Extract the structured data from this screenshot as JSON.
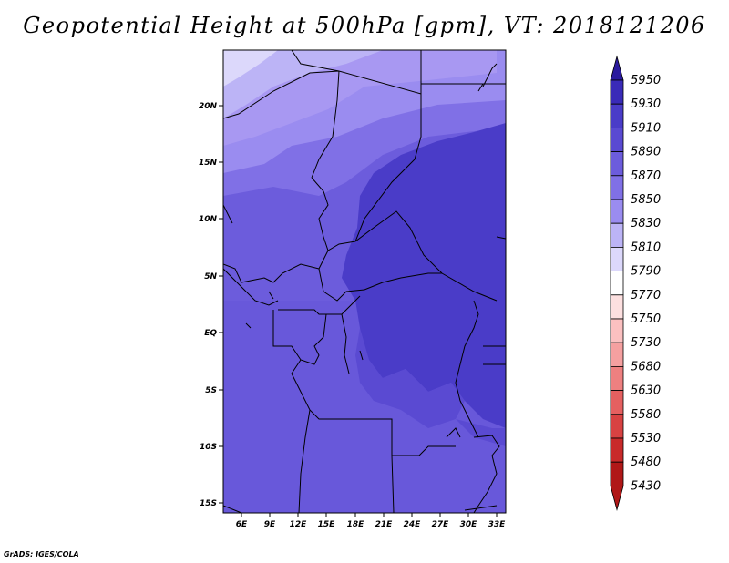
{
  "title": "Geopotential Height at 500hPa [gpm], VT: 2018121206",
  "credit": "GrADS: IGES/COLA",
  "map": {
    "lat_labels": [
      "20N",
      "15N",
      "10N",
      "5N",
      "EQ",
      "5S",
      "10S",
      "15S"
    ],
    "lon_labels": [
      "6E",
      "9E",
      "12E",
      "15E",
      "18E",
      "21E",
      "24E",
      "27E",
      "30E",
      "33E"
    ]
  },
  "colorbar": {
    "levels": [
      "5950",
      "5930",
      "5910",
      "5890",
      "5870",
      "5850",
      "5830",
      "5810",
      "5790",
      "5770",
      "5750",
      "5730",
      "5680",
      "5630",
      "5580",
      "5530",
      "5480",
      "5430"
    ],
    "colors": [
      "#2a1a9e",
      "#3a2bb8",
      "#4a3cc8",
      "#5a4ad2",
      "#6c5cdc",
      "#8070e6",
      "#9a8cf0",
      "#bcb4f6",
      "#dcd8fb",
      "#ffffff",
      "#fde0e0",
      "#fbc0c0",
      "#f5a0a0",
      "#ee8080",
      "#e56060",
      "#d84242",
      "#c82a2a",
      "#b01818"
    ]
  },
  "chart_data": {
    "type": "heatmap",
    "title": "Geopotential Height at 500hPa [gpm], VT: 2018121206",
    "x_ticks": [
      "6E",
      "9E",
      "12E",
      "15E",
      "18E",
      "21E",
      "24E",
      "27E",
      "30E",
      "33E"
    ],
    "y_ticks": [
      "20N",
      "15N",
      "10N",
      "5N",
      "EQ",
      "5S",
      "10S",
      "15S"
    ],
    "colorbar_levels": [
      5950,
      5930,
      5910,
      5890,
      5870,
      5850,
      5830,
      5810,
      5790,
      5770,
      5750,
      5730,
      5680,
      5630,
      5580,
      5530,
      5480,
      5430
    ]
  }
}
